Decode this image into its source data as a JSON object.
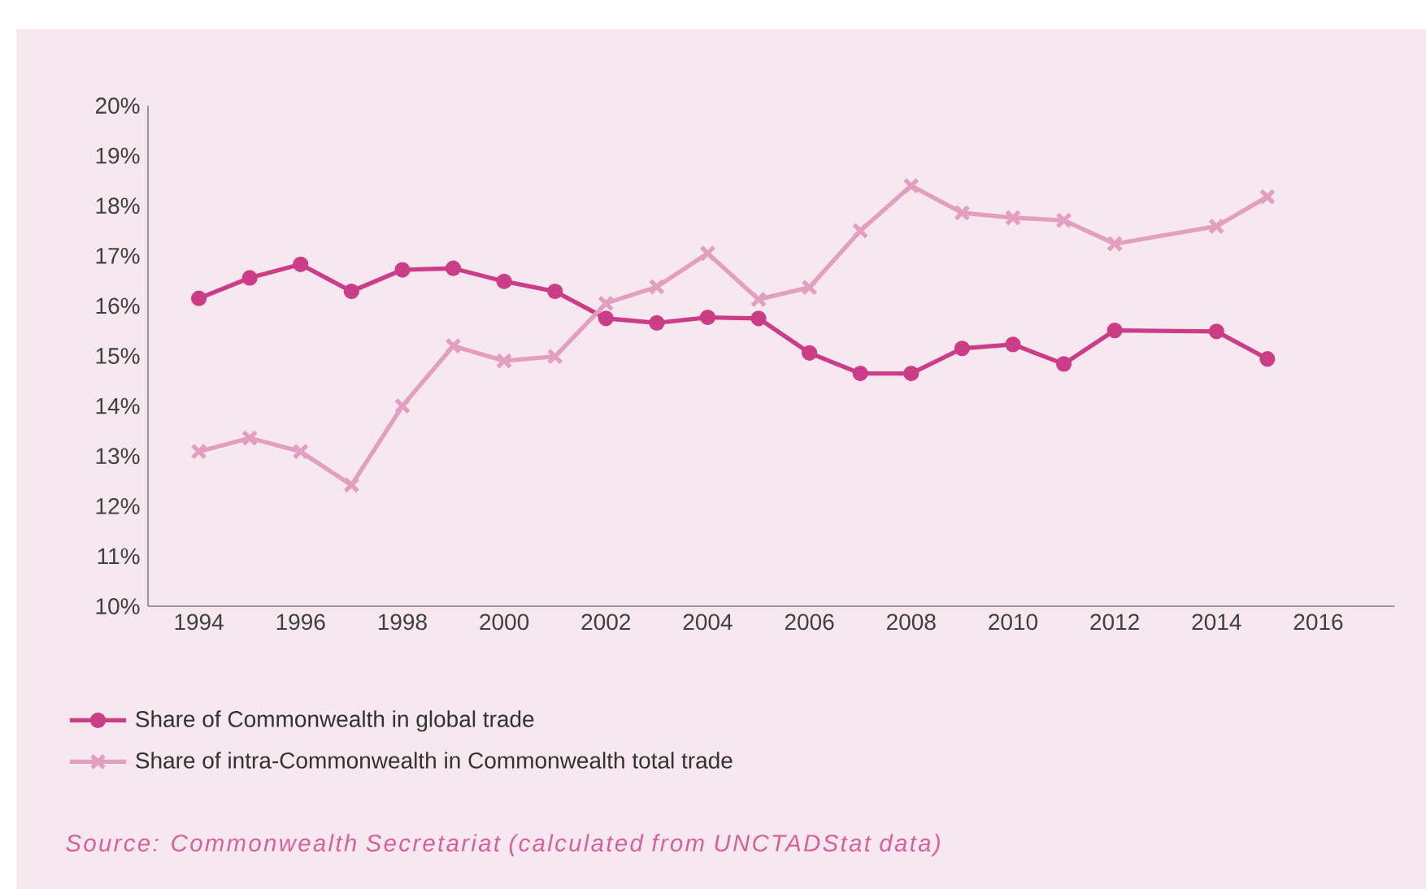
{
  "chart_data": {
    "type": "line",
    "x": [
      1994,
      1995,
      1996,
      1997,
      1998,
      1999,
      2000,
      2001,
      2002,
      2003,
      2004,
      2005,
      2006,
      2007,
      2008,
      2009,
      2010,
      2011,
      2012,
      2014,
      2015
    ],
    "series": [
      {
        "name": "Share of Commonwealth in global trade",
        "color": "#cc3d87",
        "marker": "circle",
        "values": [
          16.15,
          16.56,
          16.83,
          16.29,
          16.72,
          16.75,
          16.49,
          16.29,
          15.75,
          15.66,
          15.77,
          15.75,
          15.06,
          14.65,
          14.65,
          15.15,
          15.23,
          14.84,
          15.51,
          15.49,
          14.94
        ]
      },
      {
        "name": "Share of intra-Commonwealth in Commonwealth total trade",
        "color": "#e29fbf",
        "marker": "cross",
        "values": [
          13.09,
          13.36,
          13.09,
          12.42,
          14.0,
          15.2,
          14.9,
          14.99,
          16.05,
          16.38,
          17.05,
          16.13,
          16.37,
          17.5,
          18.4,
          17.86,
          17.76,
          17.71,
          17.24,
          17.59,
          18.18
        ]
      }
    ],
    "xlim": [
      1993,
      2017.5
    ],
    "xticks": [
      1994,
      1996,
      1998,
      2000,
      2002,
      2004,
      2006,
      2008,
      2010,
      2012,
      2014,
      2016
    ],
    "ylim": [
      10,
      20
    ],
    "yticks": [
      {
        "value": 10,
        "label": "10%"
      },
      {
        "value": 11,
        "label": "11%"
      },
      {
        "value": 12,
        "label": "12%"
      },
      {
        "value": 13,
        "label": "13%"
      },
      {
        "value": 14,
        "label": "14%"
      },
      {
        "value": 15,
        "label": "15%"
      },
      {
        "value": 16,
        "label": "16%"
      },
      {
        "value": 17,
        "label": "17%"
      },
      {
        "value": 18,
        "label": "18%"
      },
      {
        "value": 19,
        "label": "19%"
      },
      {
        "value": 20,
        "label": "20%"
      }
    ],
    "grid": false,
    "legend": "bottom",
    "line_style": "solid",
    "annotations": [
      "Source: Commonwealth Secretariat (calculated from UNCTADStat data)"
    ]
  }
}
